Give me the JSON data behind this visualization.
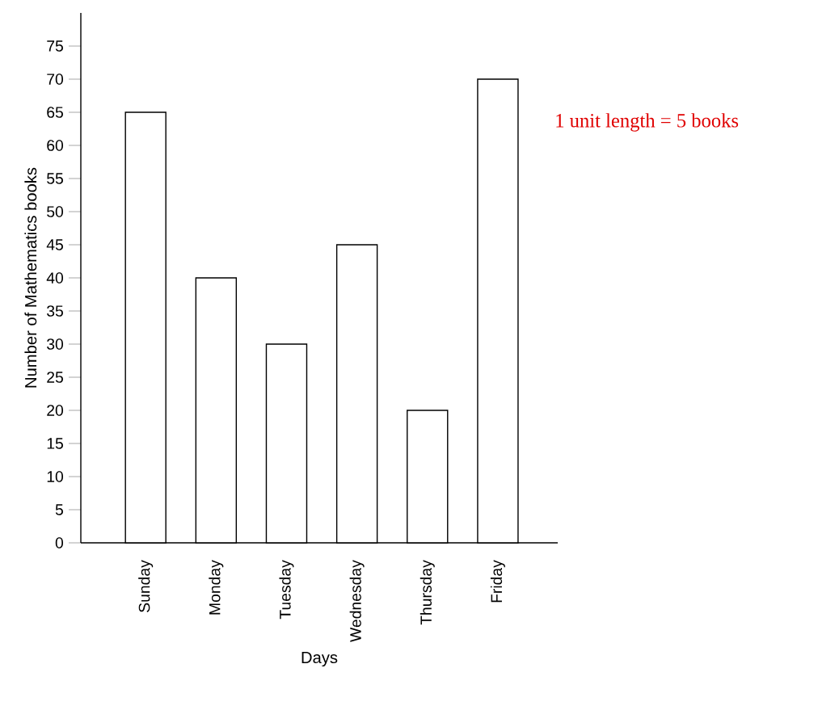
{
  "chart_data": {
    "type": "bar",
    "xlabel": "Days",
    "ylabel": "Number of Mathematics books",
    "categories": [
      "Sunday",
      "Monday",
      "Tuesday",
      "Wednesday",
      "Thursday",
      "Friday"
    ],
    "values": [
      65,
      40,
      30,
      45,
      20,
      70
    ],
    "color": "#ffffff",
    "ylim": [
      0,
      80
    ],
    "yticks": [
      0,
      5,
      10,
      15,
      20,
      25,
      30,
      35,
      40,
      45,
      50,
      55,
      60,
      65,
      70,
      75
    ],
    "annotations": [
      "1 unit length = 5 books"
    ]
  }
}
